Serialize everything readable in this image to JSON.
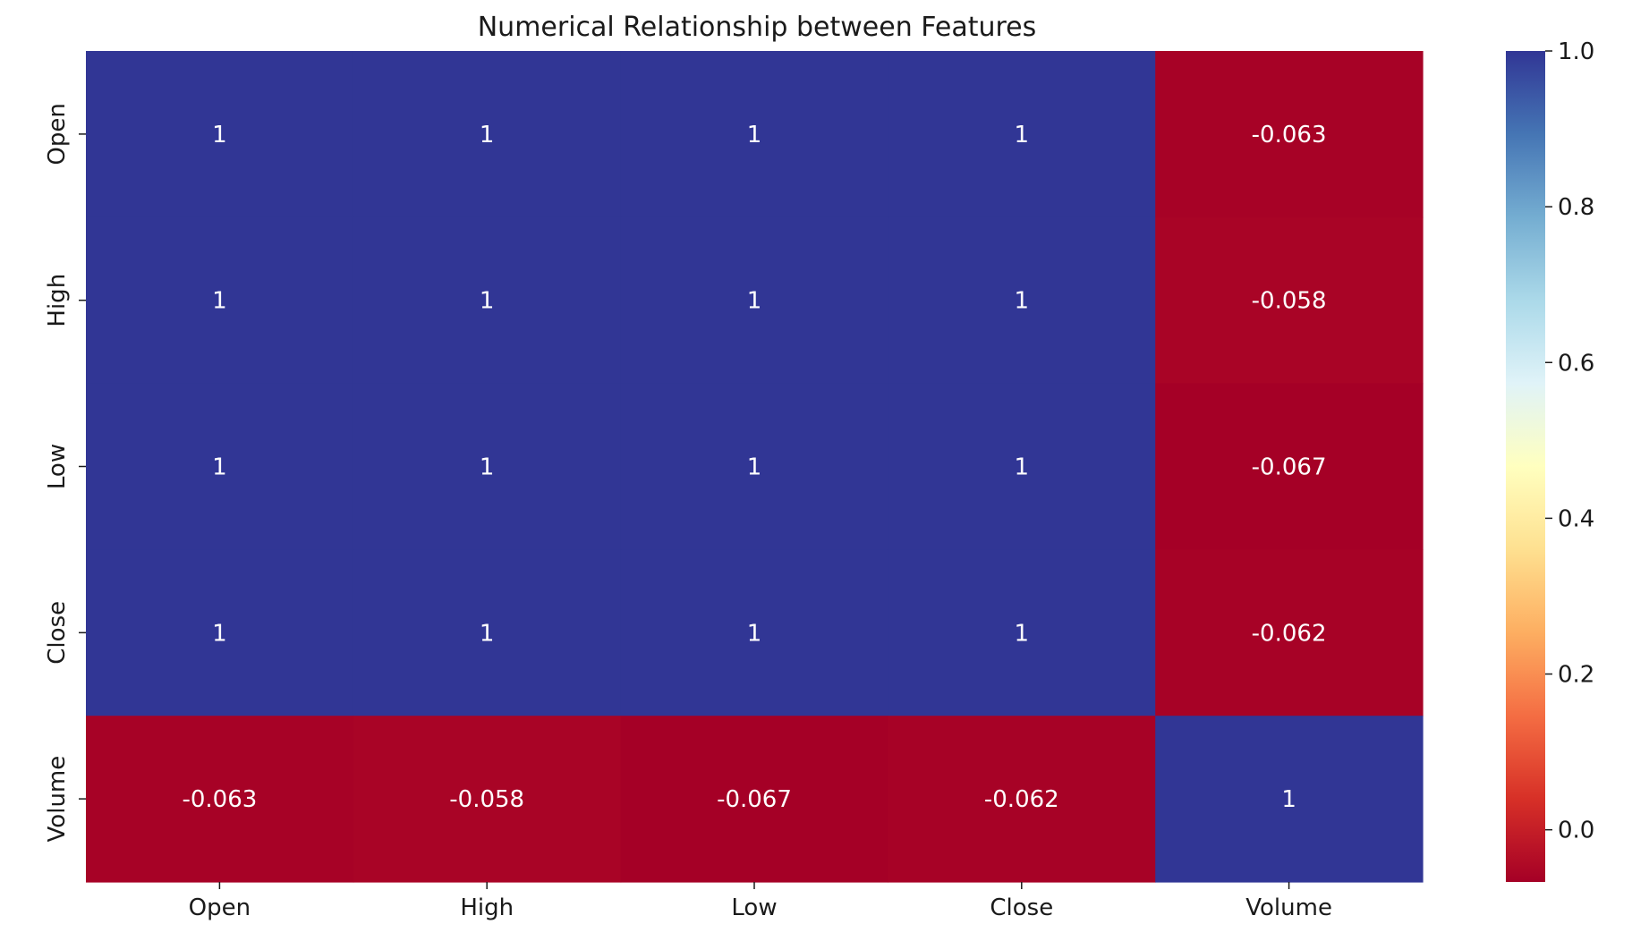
{
  "chart_data": {
    "type": "heatmap",
    "title": "Numerical Relationship between Features",
    "x_labels": [
      "Open",
      "High",
      "Low",
      "Close",
      "Volume"
    ],
    "y_labels": [
      "Open",
      "High",
      "Low",
      "Close",
      "Volume"
    ],
    "values": [
      [
        1,
        1,
        1,
        1,
        -0.063
      ],
      [
        1,
        1,
        1,
        1,
        -0.058
      ],
      [
        1,
        1,
        1,
        1,
        -0.067
      ],
      [
        1,
        1,
        1,
        1,
        -0.062
      ],
      [
        -0.063,
        -0.058,
        -0.067,
        -0.062,
        1
      ]
    ],
    "annotations": [
      [
        "1",
        "1",
        "1",
        "1",
        "-0.063"
      ],
      [
        "1",
        "1",
        "1",
        "1",
        "-0.058"
      ],
      [
        "1",
        "1",
        "1",
        "1",
        "-0.067"
      ],
      [
        "1",
        "1",
        "1",
        "1",
        "-0.062"
      ],
      [
        "-0.063",
        "-0.058",
        "-0.067",
        "-0.062",
        "1"
      ]
    ],
    "colormap": "RdYlBu",
    "colorbar": {
      "vmin": -0.067,
      "vmax": 1,
      "ticks": [
        0.0,
        0.2,
        0.4,
        0.6,
        0.8,
        1.0
      ],
      "tick_labels": [
        "0.0",
        "0.2",
        "0.4",
        "0.6",
        "0.8",
        "1.0"
      ]
    },
    "xlabel": "",
    "ylabel": "",
    "grid": false
  }
}
